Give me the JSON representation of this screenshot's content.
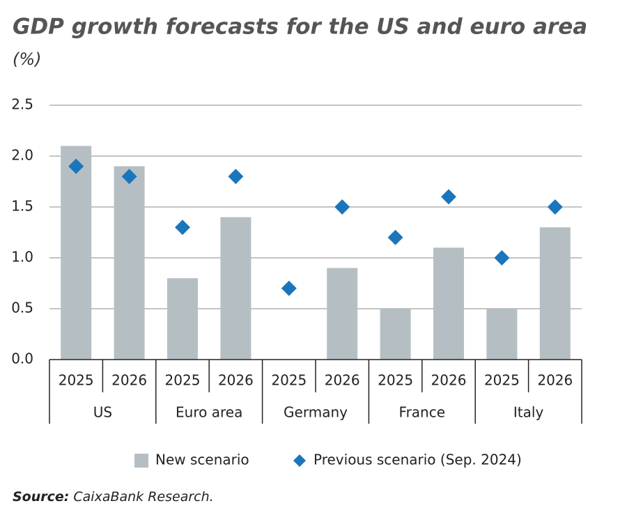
{
  "chart_data": {
    "type": "bar",
    "title": "GDP growth forecasts for the US and euro area",
    "subtitle": "(%)",
    "groups": [
      {
        "name": "US",
        "categories": [
          "2025",
          "2026"
        ]
      },
      {
        "name": "Euro area",
        "categories": [
          "2025",
          "2026"
        ]
      },
      {
        "name": "Germany",
        "categories": [
          "2025",
          "2026"
        ]
      },
      {
        "name": "France",
        "categories": [
          "2025",
          "2026"
        ]
      },
      {
        "name": "Italy",
        "categories": [
          "2025",
          "2026"
        ]
      }
    ],
    "series": [
      {
        "name": "New scenario",
        "type": "bar",
        "color": "#b5bfc3",
        "values": [
          2.1,
          1.9,
          0.8,
          1.4,
          0,
          0.9,
          0.5,
          1.1,
          0.5,
          1.3
        ]
      },
      {
        "name": "Previous scenario (Sep. 2024)",
        "type": "diamond",
        "color": "#1b75bb",
        "values": [
          1.9,
          1.8,
          1.3,
          1.8,
          0.7,
          1.5,
          1.2,
          1.6,
          1.0,
          1.5
        ]
      }
    ],
    "ylim": [
      0,
      2.5
    ],
    "yticks": [
      {
        "value": 0,
        "label": "0.0"
      },
      0.5,
      {
        "value": 1,
        "label": "1.0"
      },
      1.5,
      {
        "value": 2,
        "label": "2.0"
      },
      2.5
    ],
    "grid": true,
    "legend": "bottom",
    "source_label": "Source:",
    "source_text": "CaixaBank Research."
  }
}
